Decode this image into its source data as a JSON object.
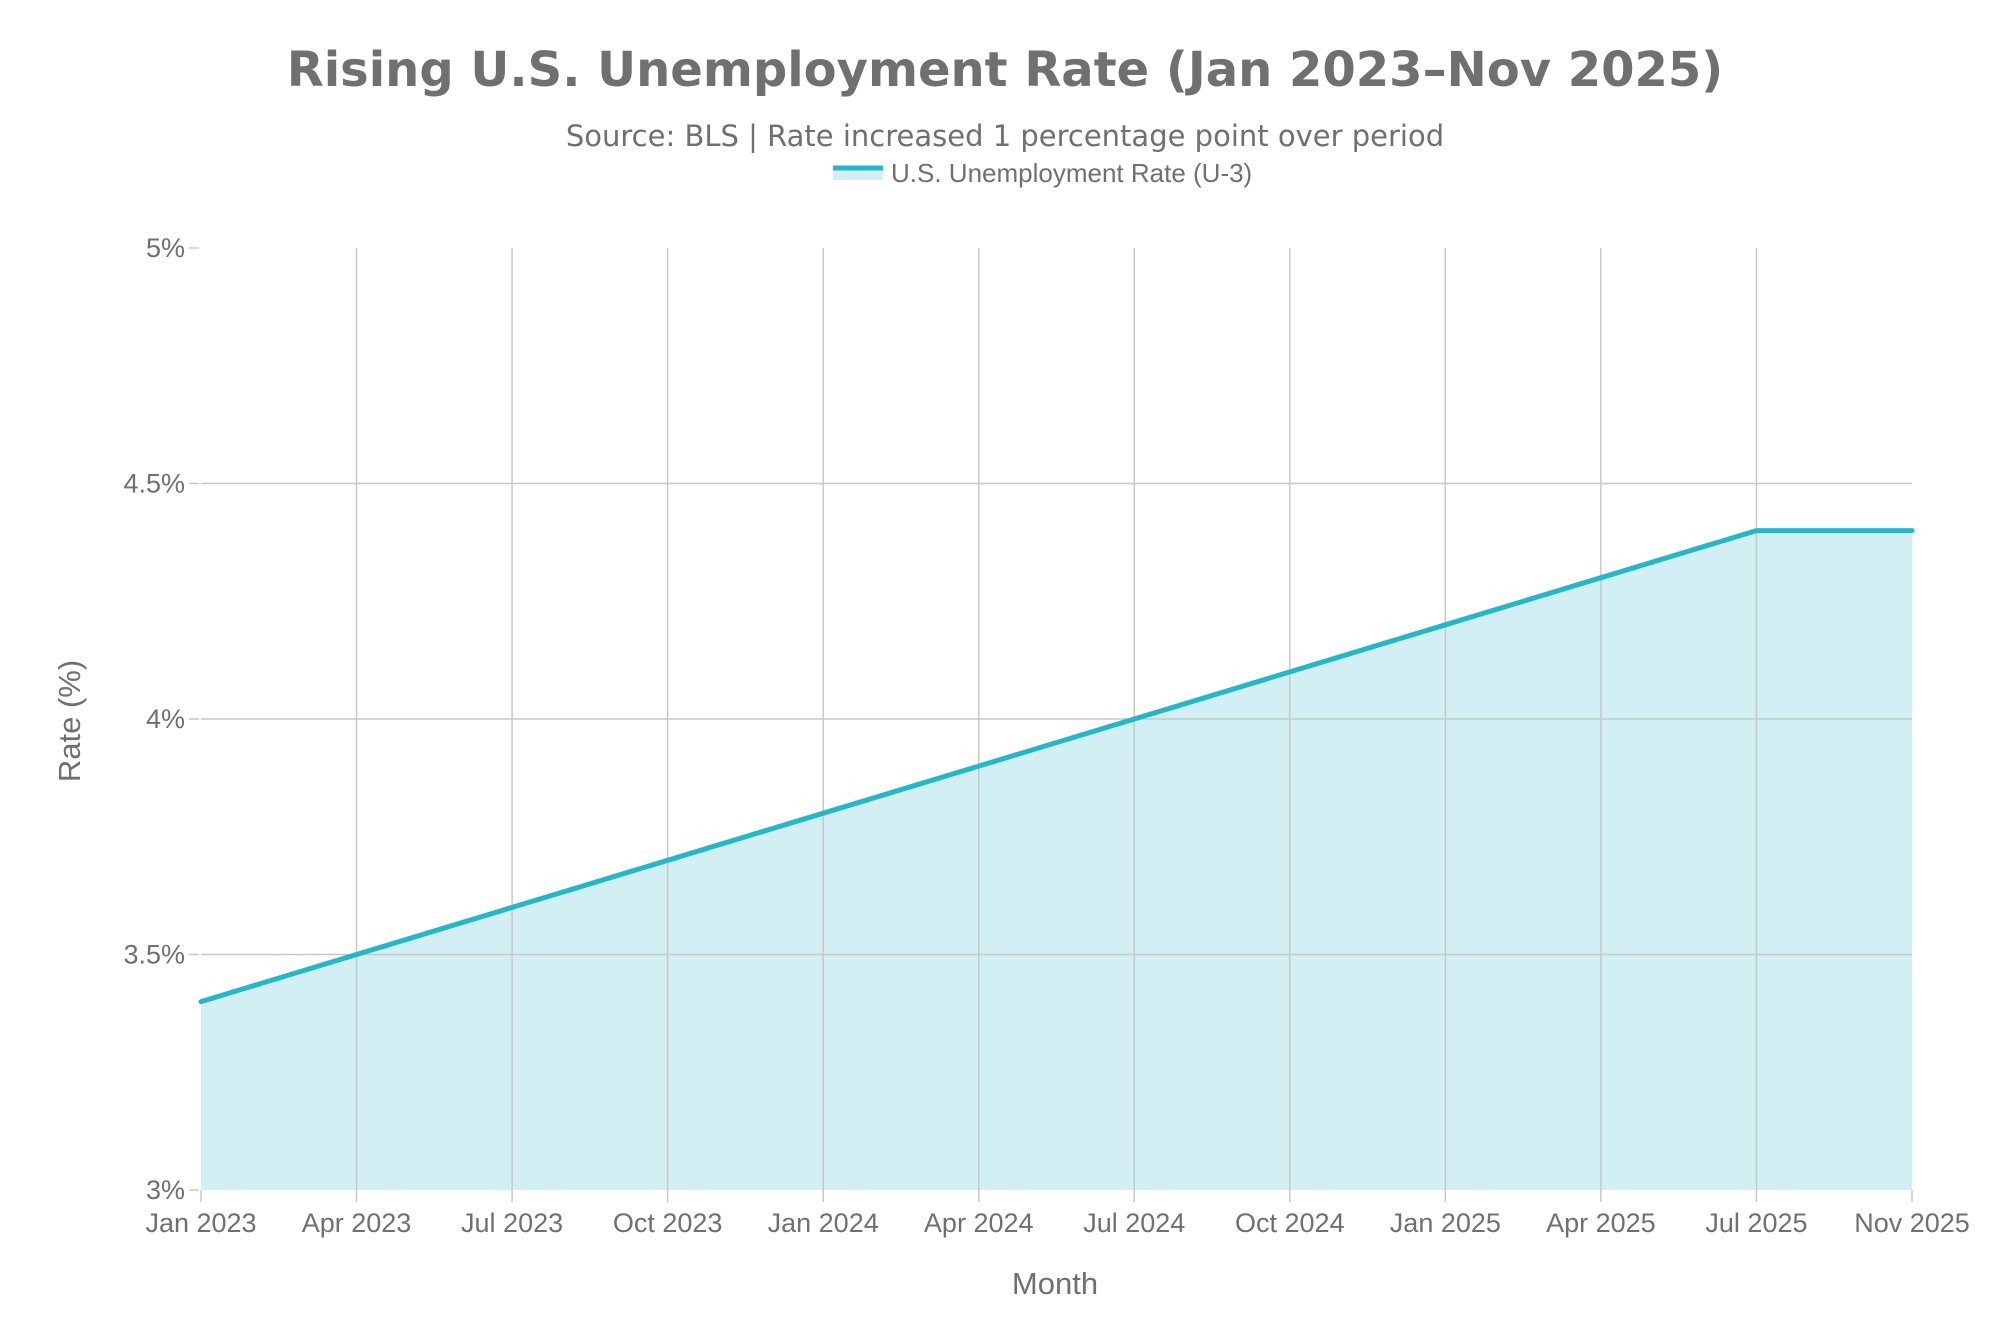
{
  "chart_data": {
    "type": "area",
    "title": "Rising U.S. Unemployment Rate (Jan 2023–Nov 2025)",
    "subtitle": "Source: BLS | Rate increased 1 percentage point over period",
    "xlabel": "Month",
    "ylabel": "Rate (%)",
    "x_tick_labels": [
      "Jan 2023",
      "Apr 2023",
      "Jul 2023",
      "Oct 2023",
      "Jan 2024",
      "Apr 2024",
      "Jul 2024",
      "Oct 2024",
      "Jan 2025",
      "Apr 2025",
      "Jul 2025",
      "Nov 2025"
    ],
    "y_tick_labels": [
      "3%",
      "3.5%",
      "4%",
      "4.5%",
      "5%"
    ],
    "y_ticks": [
      3,
      3.5,
      4,
      4.5,
      5
    ],
    "ylim": [
      3,
      5
    ],
    "grid": true,
    "legend_position": "top-center",
    "x": [
      "Jan 2023",
      "Apr 2023",
      "Jul 2023",
      "Oct 2023",
      "Jan 2024",
      "Apr 2024",
      "Jul 2024",
      "Oct 2024",
      "Jan 2025",
      "Apr 2025",
      "Jul 2025",
      "Nov 2025"
    ],
    "series": [
      {
        "name": "U.S. Unemployment Rate (U-3)",
        "values": [
          3.4,
          3.5,
          3.6,
          3.7,
          3.8,
          3.9,
          4.0,
          4.1,
          4.2,
          4.3,
          4.4,
          4.4
        ],
        "line_color": "#23b7c9",
        "fill_color": "#d2f0f3"
      }
    ]
  }
}
